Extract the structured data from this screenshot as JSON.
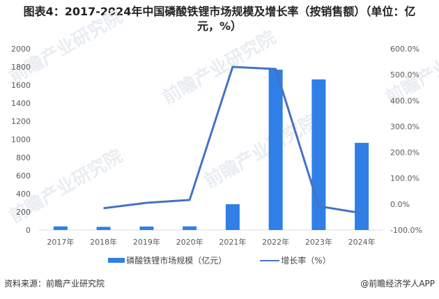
{
  "title": {
    "line1": "图表4：2017-2024年中国磷酸铁锂市场规模及增长率（按销售额）（单位：亿",
    "line2": "元，%）"
  },
  "colors": {
    "bar": "#2F7FE6",
    "line": "#4472C4",
    "axis": "#d9d9d9",
    "tick_text": "#595959"
  },
  "legend": {
    "bar_label": "磷酸铁锂市场规模（亿元）",
    "line_label": "增长率（%）"
  },
  "footer": {
    "source": "资料来源：前瞻产业研究院",
    "credit": "@前瞻经济学人APP"
  },
  "watermark": {
    "text": "前瞻产业研究院"
  },
  "chart_data": {
    "type": "bar",
    "title": "图表4：2017-2024年中国磷酸铁锂市场规模及增长率（按销售额）（单位：亿元，%）",
    "categories": [
      "2017年",
      "2018年",
      "2019年",
      "2020年",
      "2021年",
      "2022年",
      "2023年",
      "2024年"
    ],
    "series": [
      {
        "name": "磷酸铁锂市场规模（亿元）",
        "type": "bar",
        "axis": "left",
        "values": [
          40,
          35,
          38,
          40,
          285,
          1770,
          1662,
          962
        ]
      },
      {
        "name": "增长率（%）",
        "type": "line",
        "axis": "right",
        "values": [
          null,
          -16,
          5,
          16,
          530,
          522,
          -8,
          -35
        ]
      }
    ],
    "left_axis": {
      "ylim": [
        0,
        2000
      ],
      "ticks": [
        "0",
        "200",
        "400",
        "600",
        "800",
        "1000",
        "1200",
        "1400",
        "1600",
        "1800",
        "2000"
      ]
    },
    "right_axis": {
      "ylim": [
        -100,
        600
      ],
      "ticks": [
        "-100.0%",
        "0.0%",
        "100.0%",
        "200.0%",
        "300.0%",
        "400.0%",
        "500.0%",
        "600.0%"
      ]
    },
    "xlabel": "",
    "ylabel": "",
    "grid": false,
    "legend_position": "bottom"
  }
}
